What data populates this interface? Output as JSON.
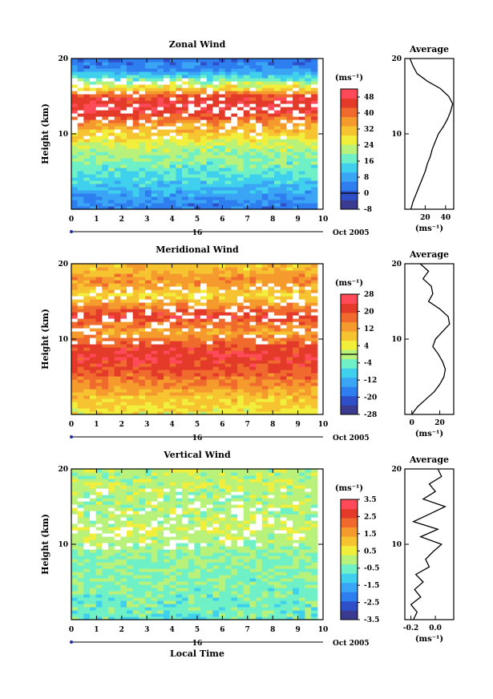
{
  "chart_data": [
    {
      "type": "heatmap",
      "title": "Zonal Wind",
      "xlabel": "",
      "ylabel": "Height (km)",
      "xlim": [
        0,
        10
      ],
      "ylim": [
        0,
        20
      ],
      "xticks": [
        "0",
        "1",
        "2",
        "3",
        "4",
        "5",
        "6",
        "7",
        "8",
        "9",
        "10"
      ],
      "yticks": [
        "10",
        "20"
      ],
      "date_marker": "16",
      "date_label": "Oct 2005",
      "colorbar": {
        "unit_label": "(ms⁻¹)",
        "range": [
          -8,
          52
        ],
        "ticks": [
          "-8",
          "0",
          "8",
          "16",
          "24",
          "32",
          "40",
          "48"
        ],
        "zero_line": 0,
        "colors": [
          "#3a3a8f",
          "#2f4fc8",
          "#2f7ef0",
          "#3aa4f5",
          "#3fd0ee",
          "#6ff0c6",
          "#b8f27a",
          "#f2ef3c",
          "#f7c431",
          "#f59a2d",
          "#f06a2e",
          "#e33a2a",
          "#ff4a5a"
        ]
      },
      "profile_levels_km": [
        0,
        2,
        4,
        6,
        8,
        9,
        10,
        11,
        12,
        13,
        14,
        15,
        16,
        17,
        18,
        19,
        20
      ],
      "field_m_s": [
        3,
        8,
        14,
        18,
        22,
        26,
        30,
        34,
        40,
        46,
        47,
        44,
        30,
        20,
        10,
        4,
        2
      ],
      "average": {
        "title": "Average",
        "xlabel": "(ms⁻¹)",
        "xlim": [
          0,
          48
        ],
        "xticks": [
          "20",
          "40"
        ],
        "ylim": [
          0,
          20
        ],
        "yticks": [
          "10",
          "20"
        ],
        "height_km": [
          0,
          1,
          2,
          3,
          4,
          5,
          6,
          7,
          8,
          9,
          10,
          11,
          12,
          13,
          14,
          15,
          16,
          17,
          18,
          19,
          20
        ],
        "value_m_s": [
          6,
          8,
          11,
          14,
          17,
          20,
          22,
          25,
          27,
          30,
          33,
          38,
          42,
          45,
          47,
          43,
          35,
          22,
          12,
          8,
          5
        ]
      }
    },
    {
      "type": "heatmap",
      "title": "Meridional Wind",
      "xlabel": "",
      "ylabel": "Height (km)",
      "xlim": [
        0,
        10
      ],
      "ylim": [
        0,
        20
      ],
      "xticks": [
        "0",
        "1",
        "2",
        "3",
        "4",
        "5",
        "6",
        "7",
        "8",
        "9",
        "10"
      ],
      "yticks": [
        "10",
        "20"
      ],
      "date_marker": "16",
      "date_label": "Oct 2005",
      "colorbar": {
        "unit_label": "(ms⁻¹)",
        "range": [
          -28,
          28
        ],
        "ticks": [
          "-28",
          "-20",
          "-12",
          "-4",
          "4",
          "12",
          "20",
          "28"
        ],
        "zero_line": 0,
        "colors": [
          "#3a3a8f",
          "#2f4fc8",
          "#2f7ef0",
          "#3aa4f5",
          "#3fd0ee",
          "#6ff0c6",
          "#b8f27a",
          "#f2ef3c",
          "#f7c431",
          "#f59a2d",
          "#f06a2e",
          "#e33a2a",
          "#ff4a5a"
        ]
      },
      "profile_levels_km": [
        0,
        2,
        4,
        6,
        8,
        9,
        10,
        11,
        12,
        13,
        14,
        15,
        16,
        17,
        18,
        19,
        20
      ],
      "field_m_s": [
        4,
        8,
        14,
        20,
        23,
        20,
        16,
        12,
        16,
        22,
        18,
        10,
        6,
        12,
        14,
        10,
        8
      ],
      "average": {
        "title": "Average",
        "xlabel": "(ms⁻¹)",
        "xlim": [
          -5,
          30
        ],
        "xticks": [
          "0",
          "20"
        ],
        "ylim": [
          0,
          20
        ],
        "yticks": [
          "10",
          "20"
        ],
        "height_km": [
          0,
          1,
          2,
          3,
          4,
          5,
          6,
          7,
          8,
          9,
          10,
          11,
          12,
          13,
          14,
          15,
          16,
          17,
          18,
          19,
          20
        ],
        "value_m_s": [
          0,
          4,
          10,
          16,
          20,
          23,
          24,
          22,
          19,
          15,
          17,
          22,
          27,
          26,
          20,
          12,
          15,
          14,
          8,
          12,
          6
        ]
      }
    },
    {
      "type": "heatmap",
      "title": "Vertical Wind",
      "xlabel": "Local Time",
      "ylabel": "Height (km)",
      "xlim": [
        0,
        10
      ],
      "ylim": [
        0,
        20
      ],
      "xticks": [
        "0",
        "1",
        "2",
        "3",
        "4",
        "5",
        "6",
        "7",
        "8",
        "9",
        "10"
      ],
      "yticks": [
        "10",
        "20"
      ],
      "date_marker": "16",
      "date_label": "Oct 2005",
      "colorbar": {
        "unit_label": "(ms⁻¹)",
        "range": [
          -3.5,
          3.5
        ],
        "ticks": [
          "-3.5",
          "-2.5",
          "-1.5",
          "-0.5",
          "0.5",
          "1.5",
          "2.5",
          "3.5"
        ],
        "zero_line": null,
        "colors": [
          "#3a3a8f",
          "#2f4fc8",
          "#2f7ef0",
          "#3aa4f5",
          "#3fd0ee",
          "#6ff0c6",
          "#b8f27a",
          "#f2ef3c",
          "#f7c431",
          "#f59a2d",
          "#f06a2e",
          "#e33a2a",
          "#ff4a5a"
        ]
      },
      "profile_levels_km": [
        0,
        2,
        4,
        6,
        8,
        9,
        10,
        11,
        12,
        13,
        14,
        15,
        16,
        17,
        18,
        19,
        20
      ],
      "field_m_s": [
        -0.6,
        -0.5,
        -0.4,
        -0.4,
        -0.3,
        -0.2,
        -0.1,
        0.1,
        0.2,
        0.1,
        -0.1,
        0.0,
        -0.1,
        0.0,
        0.1,
        0.0,
        0.1
      ],
      "average": {
        "title": "Average",
        "xlabel": "(ms⁻¹)",
        "xlim": [
          -0.25,
          0.15
        ],
        "xticks": [
          "-0.2",
          "0.0"
        ],
        "ylim": [
          0,
          20
        ],
        "yticks": [
          "10",
          "20"
        ],
        "height_km": [
          0,
          1,
          2,
          3,
          4,
          5,
          6,
          7,
          8,
          9,
          10,
          11,
          12,
          13,
          14,
          15,
          16,
          17,
          18,
          19,
          20
        ],
        "value_m_s": [
          -0.18,
          -0.15,
          -0.2,
          -0.12,
          -0.17,
          -0.1,
          -0.16,
          -0.05,
          -0.08,
          -0.02,
          0.05,
          -0.12,
          0.02,
          -0.18,
          -0.05,
          0.08,
          -0.1,
          0.0,
          -0.05,
          0.05,
          0.02
        ]
      }
    }
  ]
}
